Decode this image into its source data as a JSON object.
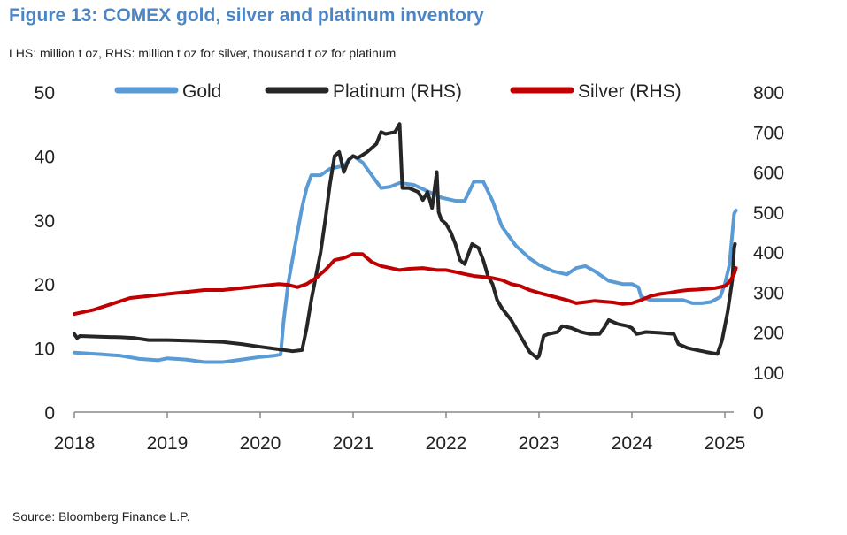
{
  "header": {
    "title": "Figure 13: COMEX gold, silver and platinum inventory",
    "subtitle": "LHS: million t oz, RHS: million t oz for silver, thousand t oz for platinum"
  },
  "footer": {
    "source": "Source: Bloomberg Finance L.P."
  },
  "colors": {
    "gold": "#5b9bd5",
    "platinum": "#262626",
    "silver": "#c00000",
    "axis": "#888888"
  },
  "chart_data": {
    "type": "line",
    "title": "Figure 13: COMEX gold, silver and platinum inventory",
    "legend_position": "top",
    "grid": false,
    "x_ticks": [
      "2018",
      "2019",
      "2020",
      "2021",
      "2022",
      "2023",
      "2024",
      "2025"
    ],
    "x_range": [
      2018,
      2025.15
    ],
    "y_left": {
      "range": [
        0,
        50
      ],
      "ticks": [
        "0",
        "10",
        "20",
        "30",
        "40",
        "50"
      ],
      "label": "million t oz"
    },
    "y_right": {
      "range": [
        0,
        800
      ],
      "ticks": [
        "0",
        "100",
        "200",
        "300",
        "400",
        "500",
        "600",
        "700",
        "800"
      ],
      "label": "million t oz (silver), thousand t oz (platinum)"
    },
    "series": [
      {
        "name": "Gold",
        "axis": "left",
        "color": "#5b9bd5",
        "points": [
          [
            2018.0,
            9.3
          ],
          [
            2018.3,
            9.0
          ],
          [
            2018.5,
            8.8
          ],
          [
            2018.7,
            8.3
          ],
          [
            2018.9,
            8.1
          ],
          [
            2019.0,
            8.4
          ],
          [
            2019.2,
            8.2
          ],
          [
            2019.4,
            7.8
          ],
          [
            2019.6,
            7.8
          ],
          [
            2019.8,
            8.2
          ],
          [
            2020.0,
            8.6
          ],
          [
            2020.15,
            8.8
          ],
          [
            2020.22,
            9.0
          ],
          [
            2020.25,
            14.0
          ],
          [
            2020.3,
            20.0
          ],
          [
            2020.35,
            24.0
          ],
          [
            2020.4,
            28.0
          ],
          [
            2020.45,
            32.0
          ],
          [
            2020.5,
            35.0
          ],
          [
            2020.55,
            37.0
          ],
          [
            2020.65,
            37.0
          ],
          [
            2020.75,
            38.0
          ],
          [
            2020.9,
            38.5
          ],
          [
            2021.0,
            40.0
          ],
          [
            2021.1,
            39.0
          ],
          [
            2021.2,
            37.0
          ],
          [
            2021.3,
            35.0
          ],
          [
            2021.4,
            35.2
          ],
          [
            2021.5,
            35.8
          ],
          [
            2021.65,
            35.5
          ],
          [
            2021.8,
            34.5
          ],
          [
            2021.95,
            33.5
          ],
          [
            2022.1,
            33.0
          ],
          [
            2022.2,
            33.0
          ],
          [
            2022.3,
            36.0
          ],
          [
            2022.4,
            36.0
          ],
          [
            2022.5,
            33.0
          ],
          [
            2022.6,
            29.0
          ],
          [
            2022.75,
            26.0
          ],
          [
            2022.9,
            24.0
          ],
          [
            2023.0,
            23.0
          ],
          [
            2023.15,
            22.0
          ],
          [
            2023.3,
            21.5
          ],
          [
            2023.4,
            22.5
          ],
          [
            2023.5,
            22.8
          ],
          [
            2023.6,
            22.0
          ],
          [
            2023.75,
            20.5
          ],
          [
            2023.9,
            20.0
          ],
          [
            2024.0,
            20.0
          ],
          [
            2024.07,
            19.5
          ],
          [
            2024.1,
            18.0
          ],
          [
            2024.2,
            17.5
          ],
          [
            2024.4,
            17.5
          ],
          [
            2024.55,
            17.5
          ],
          [
            2024.65,
            17.0
          ],
          [
            2024.75,
            17.0
          ],
          [
            2024.85,
            17.2
          ],
          [
            2024.95,
            18.0
          ],
          [
            2025.0,
            20.0
          ],
          [
            2025.05,
            23.0
          ],
          [
            2025.1,
            31.0
          ],
          [
            2025.12,
            31.5
          ]
        ]
      },
      {
        "name": "Platinum (RHS)",
        "axis": "right",
        "color": "#262626",
        "points": [
          [
            2018.0,
            195
          ],
          [
            2018.03,
            185
          ],
          [
            2018.06,
            190
          ],
          [
            2018.3,
            188
          ],
          [
            2018.5,
            187
          ],
          [
            2018.65,
            185
          ],
          [
            2018.8,
            180
          ],
          [
            2019.0,
            180
          ],
          [
            2019.3,
            178
          ],
          [
            2019.6,
            175
          ],
          [
            2019.8,
            170
          ],
          [
            2020.0,
            163
          ],
          [
            2020.2,
            157
          ],
          [
            2020.35,
            152
          ],
          [
            2020.45,
            155
          ],
          [
            2020.5,
            210
          ],
          [
            2020.55,
            280
          ],
          [
            2020.6,
            340
          ],
          [
            2020.65,
            400
          ],
          [
            2020.7,
            480
          ],
          [
            2020.75,
            570
          ],
          [
            2020.8,
            640
          ],
          [
            2020.85,
            650
          ],
          [
            2020.9,
            600
          ],
          [
            2020.95,
            630
          ],
          [
            2021.0,
            640
          ],
          [
            2021.05,
            635
          ],
          [
            2021.15,
            650
          ],
          [
            2021.25,
            670
          ],
          [
            2021.3,
            700
          ],
          [
            2021.35,
            695
          ],
          [
            2021.45,
            700
          ],
          [
            2021.5,
            720
          ],
          [
            2021.53,
            560
          ],
          [
            2021.6,
            560
          ],
          [
            2021.7,
            550
          ],
          [
            2021.75,
            530
          ],
          [
            2021.8,
            550
          ],
          [
            2021.85,
            510
          ],
          [
            2021.9,
            600
          ],
          [
            2021.92,
            500
          ],
          [
            2021.95,
            480
          ],
          [
            2022.0,
            470
          ],
          [
            2022.05,
            450
          ],
          [
            2022.1,
            420
          ],
          [
            2022.15,
            380
          ],
          [
            2022.2,
            370
          ],
          [
            2022.28,
            420
          ],
          [
            2022.35,
            410
          ],
          [
            2022.4,
            380
          ],
          [
            2022.45,
            340
          ],
          [
            2022.5,
            320
          ],
          [
            2022.55,
            280
          ],
          [
            2022.6,
            260
          ],
          [
            2022.7,
            230
          ],
          [
            2022.8,
            190
          ],
          [
            2022.9,
            150
          ],
          [
            2022.98,
            135
          ],
          [
            2023.0,
            140
          ],
          [
            2023.05,
            190
          ],
          [
            2023.1,
            195
          ],
          [
            2023.2,
            200
          ],
          [
            2023.25,
            215
          ],
          [
            2023.35,
            210
          ],
          [
            2023.45,
            200
          ],
          [
            2023.55,
            195
          ],
          [
            2023.65,
            195
          ],
          [
            2023.7,
            210
          ],
          [
            2023.75,
            230
          ],
          [
            2023.85,
            220
          ],
          [
            2023.95,
            215
          ],
          [
            2024.0,
            210
          ],
          [
            2024.05,
            195
          ],
          [
            2024.15,
            200
          ],
          [
            2024.3,
            198
          ],
          [
            2024.45,
            195
          ],
          [
            2024.5,
            170
          ],
          [
            2024.6,
            160
          ],
          [
            2024.7,
            155
          ],
          [
            2024.8,
            150
          ],
          [
            2024.92,
            145
          ],
          [
            2024.97,
            180
          ],
          [
            2025.03,
            250
          ],
          [
            2025.08,
            330
          ],
          [
            2025.1,
            410
          ],
          [
            2025.11,
            420
          ]
        ]
      },
      {
        "name": "Silver (RHS)",
        "axis": "right",
        "color": "#c00000",
        "points": [
          [
            2018.0,
            245
          ],
          [
            2018.2,
            255
          ],
          [
            2018.4,
            270
          ],
          [
            2018.6,
            285
          ],
          [
            2018.8,
            290
          ],
          [
            2019.0,
            295
          ],
          [
            2019.2,
            300
          ],
          [
            2019.4,
            305
          ],
          [
            2019.6,
            305
          ],
          [
            2019.8,
            310
          ],
          [
            2020.0,
            315
          ],
          [
            2020.2,
            320
          ],
          [
            2020.3,
            318
          ],
          [
            2020.4,
            312
          ],
          [
            2020.5,
            320
          ],
          [
            2020.6,
            335
          ],
          [
            2020.7,
            355
          ],
          [
            2020.8,
            380
          ],
          [
            2020.9,
            385
          ],
          [
            2021.0,
            395
          ],
          [
            2021.1,
            395
          ],
          [
            2021.2,
            375
          ],
          [
            2021.3,
            365
          ],
          [
            2021.4,
            360
          ],
          [
            2021.5,
            355
          ],
          [
            2021.6,
            358
          ],
          [
            2021.75,
            360
          ],
          [
            2021.9,
            355
          ],
          [
            2022.0,
            355
          ],
          [
            2022.1,
            350
          ],
          [
            2022.2,
            345
          ],
          [
            2022.3,
            340
          ],
          [
            2022.4,
            338
          ],
          [
            2022.5,
            335
          ],
          [
            2022.6,
            330
          ],
          [
            2022.7,
            320
          ],
          [
            2022.8,
            315
          ],
          [
            2022.9,
            305
          ],
          [
            2023.0,
            298
          ],
          [
            2023.1,
            292
          ],
          [
            2023.2,
            286
          ],
          [
            2023.3,
            280
          ],
          [
            2023.4,
            272
          ],
          [
            2023.5,
            275
          ],
          [
            2023.6,
            278
          ],
          [
            2023.7,
            276
          ],
          [
            2023.8,
            274
          ],
          [
            2023.9,
            270
          ],
          [
            2024.0,
            272
          ],
          [
            2024.1,
            280
          ],
          [
            2024.2,
            290
          ],
          [
            2024.3,
            295
          ],
          [
            2024.4,
            298
          ],
          [
            2024.5,
            302
          ],
          [
            2024.6,
            305
          ],
          [
            2024.7,
            306
          ],
          [
            2024.8,
            308
          ],
          [
            2024.9,
            310
          ],
          [
            2025.0,
            315
          ],
          [
            2025.05,
            325
          ],
          [
            2025.1,
            345
          ],
          [
            2025.12,
            360
          ]
        ]
      }
    ]
  }
}
